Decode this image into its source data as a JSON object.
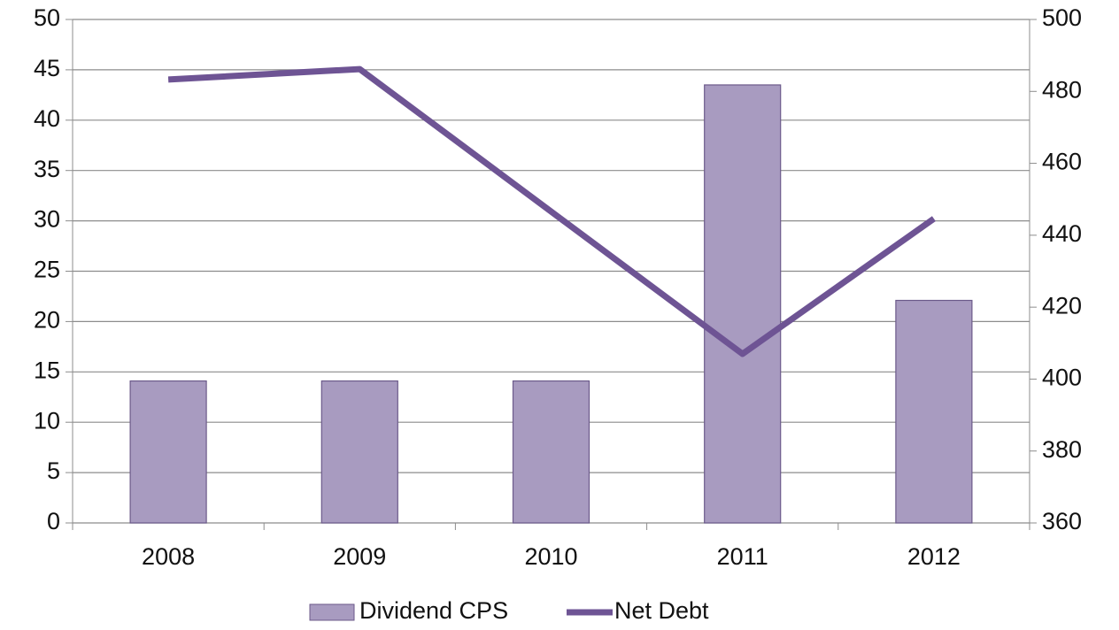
{
  "chart_data": {
    "type": "bar",
    "categories": [
      "2008",
      "2009",
      "2010",
      "2011",
      "2012"
    ],
    "series": [
      {
        "name": "Dividend CPS",
        "type": "bar",
        "color": "#a89bc0",
        "values": [
          14.1,
          14.1,
          14.1,
          43.5,
          22.1
        ]
      },
      {
        "name": "Net Debt",
        "type": "line",
        "axis": "y2",
        "color": "#6e5494",
        "values": [
          483.3,
          486.2,
          446.6,
          407,
          444.6
        ]
      }
    ],
    "ylim": [
      0,
      50
    ],
    "yticks": [
      0,
      5,
      10,
      15,
      20,
      25,
      30,
      35,
      40,
      45,
      50
    ],
    "y2lim": [
      360,
      500
    ],
    "y2ticks": [
      360,
      380,
      400,
      420,
      440,
      460,
      480,
      500
    ],
    "grid": true,
    "legend": "bottom"
  }
}
